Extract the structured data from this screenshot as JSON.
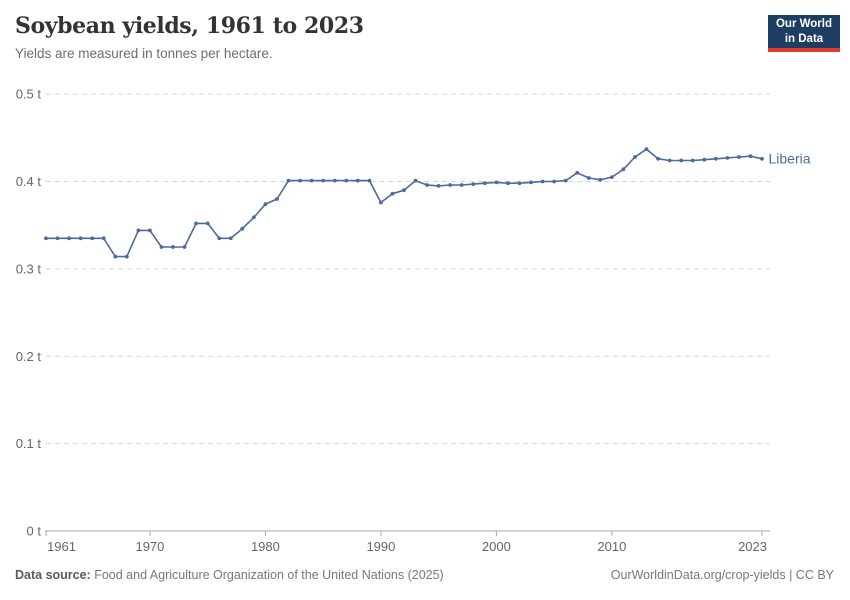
{
  "header": {
    "title": "Soybean yields, 1961 to 2023",
    "subtitle": "Yields are measured in tonnes per hectare."
  },
  "logo": {
    "line1": "Our World",
    "line2": "in Data",
    "bg_color": "#1d3d63",
    "accent_color": "#e0392e"
  },
  "footer": {
    "source_label": "Data source:",
    "source_text": " Food and Agriculture Organization of the United Nations (2025)",
    "credit": "OurWorldinData.org/crop-yields | CC BY"
  },
  "chart_data": {
    "type": "line",
    "title": "Soybean yields, 1961 to 2023",
    "subtitle": "Yields are measured in tonnes per hectare.",
    "xlabel": "",
    "ylabel": "tonnes per hectare",
    "unit_suffix": " t",
    "xlim": [
      1961,
      2023
    ],
    "ylim": [
      0,
      0.5
    ],
    "grid": true,
    "x_ticks": [
      1961,
      1970,
      1980,
      1990,
      2000,
      2010,
      2023
    ],
    "y_ticks": [
      0,
      0.1,
      0.2,
      0.3,
      0.4,
      0.5
    ],
    "y_tick_labels": [
      "0 t",
      "0.1 t",
      "0.2 t",
      "0.3 t",
      "0.4 t",
      "0.5 t"
    ],
    "legend_position": "end-of-line",
    "grid_color": "#d5d5d5",
    "axis_color": "#a8a8a8",
    "tick_label_color": "#666666",
    "series": [
      {
        "name": "Liberia",
        "color": "#4C6B9C",
        "years": [
          1961,
          1962,
          1963,
          1964,
          1965,
          1966,
          1967,
          1968,
          1969,
          1970,
          1971,
          1972,
          1973,
          1974,
          1975,
          1976,
          1977,
          1978,
          1979,
          1980,
          1981,
          1982,
          1983,
          1984,
          1985,
          1986,
          1987,
          1988,
          1989,
          1990,
          1991,
          1992,
          1993,
          1994,
          1995,
          1996,
          1997,
          1998,
          1999,
          2000,
          2001,
          2002,
          2003,
          2004,
          2005,
          2006,
          2007,
          2008,
          2009,
          2010,
          2011,
          2012,
          2013,
          2014,
          2015,
          2016,
          2017,
          2018,
          2019,
          2020,
          2021,
          2022,
          2023
        ],
        "values": [
          0.335,
          0.335,
          0.335,
          0.335,
          0.335,
          0.335,
          0.314,
          0.314,
          0.344,
          0.344,
          0.325,
          0.325,
          0.325,
          0.352,
          0.352,
          0.335,
          0.335,
          0.346,
          0.359,
          0.374,
          0.38,
          0.401,
          0.401,
          0.401,
          0.401,
          0.401,
          0.401,
          0.401,
          0.401,
          0.376,
          0.386,
          0.39,
          0.401,
          0.396,
          0.395,
          0.396,
          0.396,
          0.397,
          0.398,
          0.399,
          0.398,
          0.398,
          0.399,
          0.4,
          0.4,
          0.401,
          0.41,
          0.404,
          0.402,
          0.405,
          0.414,
          0.428,
          0.437,
          0.426,
          0.424,
          0.424,
          0.424,
          0.425,
          0.426,
          0.427,
          0.428,
          0.429,
          0.426
        ]
      }
    ]
  }
}
